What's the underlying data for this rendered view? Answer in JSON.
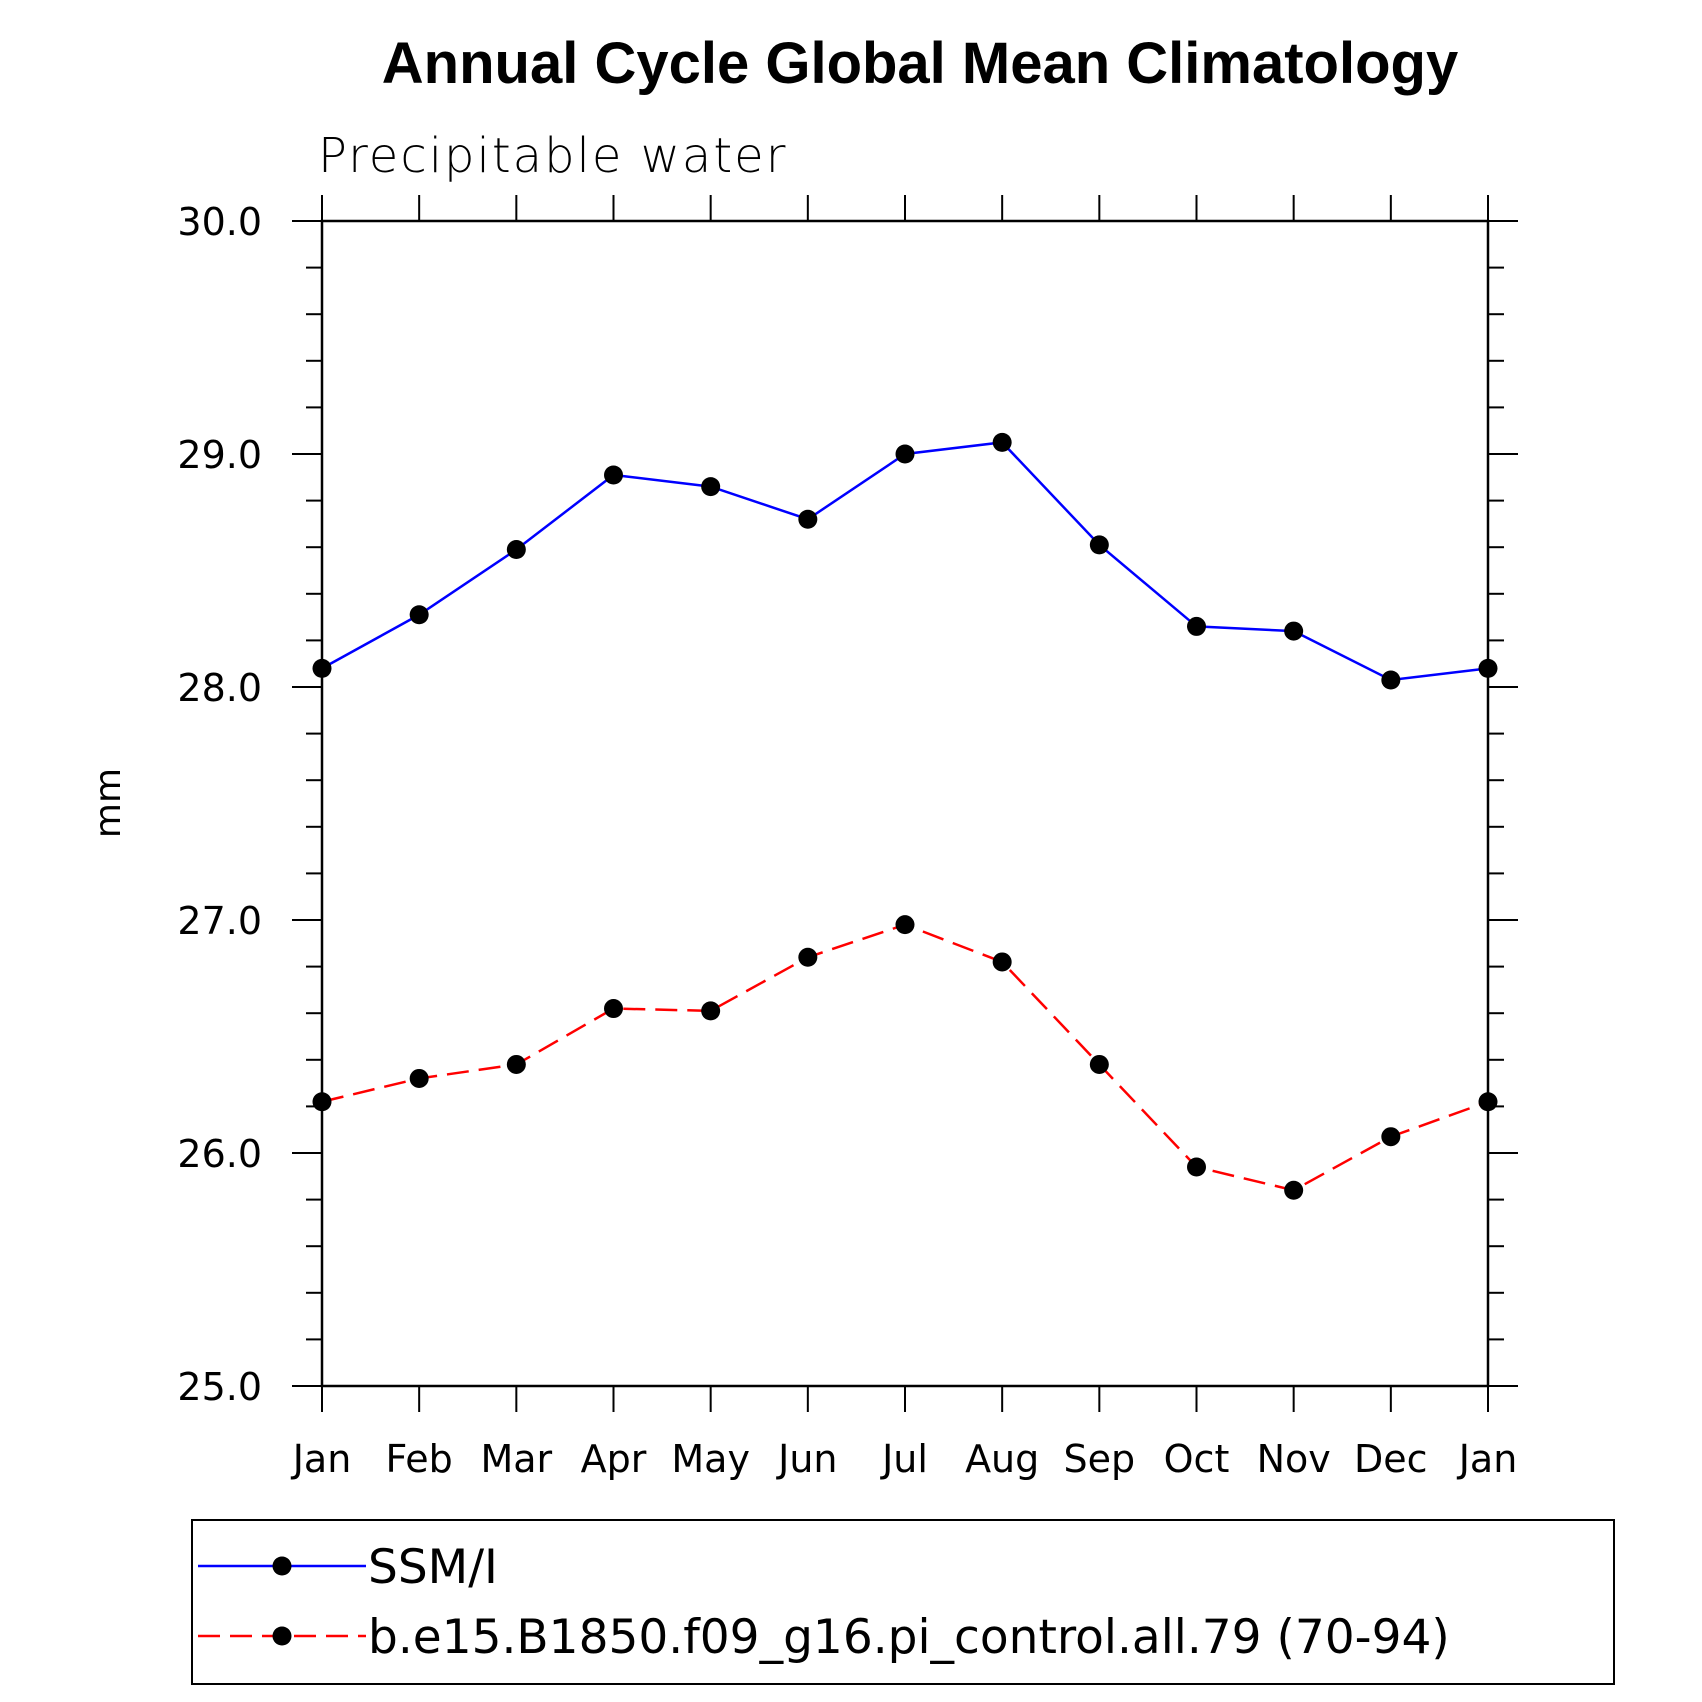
{
  "chart_data": {
    "type": "line",
    "title": "Annual Cycle Global Mean Climatology",
    "subtitle": "Precipitable water",
    "xlabel": "",
    "ylabel": "mm",
    "categories": [
      "Jan",
      "Feb",
      "Mar",
      "Apr",
      "May",
      "Jun",
      "Jul",
      "Aug",
      "Sep",
      "Oct",
      "Nov",
      "Dec",
      "Jan"
    ],
    "ylim": [
      25.0,
      30.0
    ],
    "yticks": [
      "25.0",
      "26.0",
      "27.0",
      "28.0",
      "29.0",
      "30.0"
    ],
    "series": [
      {
        "name": "SSM/I",
        "color": "#0000ff",
        "dash": "solid",
        "marker": "filled-circle",
        "values": [
          28.08,
          28.31,
          28.59,
          28.91,
          28.86,
          28.72,
          29.0,
          29.05,
          28.61,
          28.26,
          28.24,
          28.03,
          28.08
        ]
      },
      {
        "name": "b.e15.B1850.f09_g16.pi_control.all.79 (70-94)",
        "color": "#ff0000",
        "dash": "dashed",
        "marker": "filled-circle",
        "values": [
          26.22,
          26.32,
          26.38,
          26.62,
          26.61,
          26.84,
          26.98,
          26.82,
          26.38,
          25.94,
          25.84,
          26.07,
          26.22
        ]
      }
    ],
    "legend_position": "bottom"
  }
}
